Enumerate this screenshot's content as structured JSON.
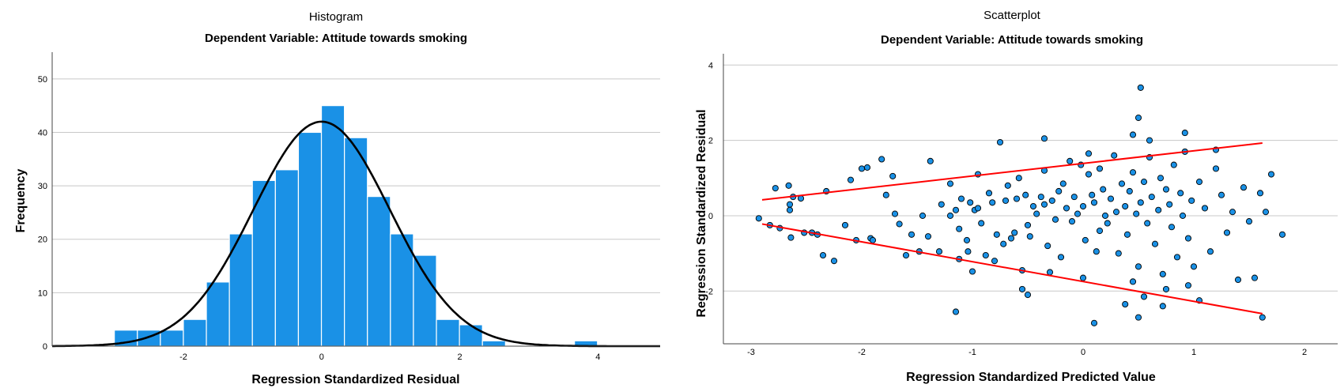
{
  "charts": [
    {
      "type": "bar",
      "subtype": "histogram",
      "title": "Histogram",
      "subtitle": "Dependent Variable: Attitude towards smoking",
      "xlabel": "Regression Standardized Residual",
      "ylabel": "Frequency",
      "xlim": [
        -3.9,
        4.9
      ],
      "ylim": [
        0,
        55
      ],
      "x_ticks": [
        -2,
        0,
        2,
        4
      ],
      "y_ticks": [
        0,
        10,
        20,
        30,
        40,
        50
      ],
      "grid": "horizontal",
      "bar_color": "#1a91e6",
      "curve_color": "#000000",
      "bin_width": 0.333,
      "bin_start": -3.0,
      "values": [
        3,
        3,
        3,
        5,
        12,
        21,
        31,
        33,
        40,
        45,
        39,
        28,
        21,
        17,
        5,
        4,
        1,
        0,
        0,
        0,
        1
      ],
      "normal_curve": {
        "mean": 0.0,
        "std_dev": 0.99,
        "peak": 42
      }
    },
    {
      "type": "scatter",
      "title": "Scatterplot",
      "subtitle": "Dependent Variable: Attitude towards smoking",
      "xlabel": "Regression Standardized Predicted Value",
      "ylabel": "Regression Standardized Residual",
      "xlim": [
        -3.25,
        2.3
      ],
      "ylim": [
        -3.4,
        4.3
      ],
      "x_ticks": [
        -3,
        -2,
        -1,
        0,
        1,
        2
      ],
      "y_ticks": [
        -2,
        0,
        2,
        4
      ],
      "grid": "horizontal",
      "point_color": "#1a91e6",
      "line_color": "#ff0000",
      "lines": [
        {
          "x": [
            -2.9,
            1.62
          ],
          "y": [
            0.42,
            1.93
          ]
        },
        {
          "x": [
            -2.9,
            1.62
          ],
          "y": [
            -0.22,
            -2.6
          ]
        }
      ],
      "points": [
        [
          -2.93,
          -0.07
        ],
        [
          -2.83,
          -0.25
        ],
        [
          -2.78,
          0.73
        ],
        [
          -2.74,
          -0.33
        ],
        [
          -2.66,
          0.8
        ],
        [
          -2.65,
          0.3
        ],
        [
          -2.65,
          0.15
        ],
        [
          -2.64,
          -0.58
        ],
        [
          -2.62,
          0.5
        ],
        [
          -2.55,
          0.46
        ],
        [
          -2.52,
          -0.45
        ],
        [
          -2.45,
          -0.45
        ],
        [
          -2.4,
          -0.5
        ],
        [
          -2.35,
          -1.05
        ],
        [
          -2.32,
          0.65
        ],
        [
          -2.25,
          -1.2
        ],
        [
          -2.15,
          -0.25
        ],
        [
          -2.1,
          0.95
        ],
        [
          -2.05,
          -0.65
        ],
        [
          -2.0,
          1.25
        ],
        [
          -1.95,
          1.28
        ],
        [
          -1.92,
          -0.6
        ],
        [
          -1.9,
          -0.65
        ],
        [
          -1.82,
          1.5
        ],
        [
          -1.78,
          0.55
        ],
        [
          -1.72,
          1.05
        ],
        [
          -1.7,
          0.05
        ],
        [
          -1.66,
          -0.22
        ],
        [
          -1.6,
          -1.05
        ],
        [
          -1.55,
          -0.5
        ],
        [
          -1.48,
          -0.95
        ],
        [
          -1.45,
          0.0
        ],
        [
          -1.4,
          -0.55
        ],
        [
          -1.38,
          1.45
        ],
        [
          -1.3,
          -0.95
        ],
        [
          -1.28,
          0.3
        ],
        [
          -1.2,
          0.85
        ],
        [
          -1.2,
          0.0
        ],
        [
          -1.15,
          0.15
        ],
        [
          -1.12,
          -0.35
        ],
        [
          -1.12,
          -1.15
        ],
        [
          -1.1,
          0.45
        ],
        [
          -1.05,
          -0.65
        ],
        [
          -1.04,
          -0.95
        ],
        [
          -1.02,
          0.35
        ],
        [
          -1.0,
          -1.48
        ],
        [
          -0.98,
          0.15
        ],
        [
          -0.95,
          1.1
        ],
        [
          -0.95,
          0.2
        ],
        [
          -0.92,
          -0.2
        ],
        [
          -0.88,
          -1.05
        ],
        [
          -0.85,
          0.6
        ],
        [
          -0.82,
          0.35
        ],
        [
          -0.8,
          -1.2
        ],
        [
          -0.78,
          -0.5
        ],
        [
          -0.72,
          -0.75
        ],
        [
          -0.7,
          0.4
        ],
        [
          -0.68,
          0.8
        ],
        [
          -0.65,
          -0.6
        ],
        [
          -0.62,
          -0.45
        ],
        [
          -0.6,
          0.45
        ],
        [
          -0.58,
          1.0
        ],
        [
          -0.55,
          -1.45
        ],
        [
          -0.52,
          0.55
        ],
        [
          -0.5,
          -0.25
        ],
        [
          -0.48,
          -0.55
        ],
        [
          -0.45,
          0.25
        ],
        [
          -0.42,
          0.05
        ],
        [
          -0.38,
          0.5
        ],
        [
          -0.35,
          0.3
        ],
        [
          -0.35,
          1.2
        ],
        [
          -0.32,
          -0.8
        ],
        [
          -0.28,
          0.4
        ],
        [
          -0.25,
          -0.1
        ],
        [
          -0.22,
          0.65
        ],
        [
          -0.2,
          -1.1
        ],
        [
          -0.18,
          0.85
        ],
        [
          -0.15,
          0.2
        ],
        [
          -0.12,
          1.45
        ],
        [
          -0.1,
          -0.15
        ],
        [
          -0.08,
          0.5
        ],
        [
          -0.05,
          0.05
        ],
        [
          -0.02,
          1.35
        ],
        [
          0.0,
          0.25
        ],
        [
          0.02,
          -0.65
        ],
        [
          0.05,
          1.1
        ],
        [
          0.08,
          0.55
        ],
        [
          0.1,
          0.35
        ],
        [
          0.12,
          -0.95
        ],
        [
          0.15,
          -0.4
        ],
        [
          0.15,
          1.25
        ],
        [
          0.18,
          0.7
        ],
        [
          0.2,
          0.0
        ],
        [
          0.22,
          -0.2
        ],
        [
          0.25,
          0.45
        ],
        [
          0.28,
          1.6
        ],
        [
          0.3,
          0.1
        ],
        [
          0.32,
          -1.0
        ],
        [
          0.35,
          0.85
        ],
        [
          0.38,
          0.25
        ],
        [
          0.4,
          -0.5
        ],
        [
          0.42,
          0.65
        ],
        [
          0.45,
          1.15
        ],
        [
          0.48,
          0.05
        ],
        [
          0.5,
          -1.35
        ],
        [
          0.52,
          0.35
        ],
        [
          0.55,
          0.9
        ],
        [
          0.58,
          -0.2
        ],
        [
          0.6,
          1.55
        ],
        [
          0.62,
          0.5
        ],
        [
          0.65,
          -0.75
        ],
        [
          0.68,
          0.15
        ],
        [
          0.7,
          1.0
        ],
        [
          0.72,
          -1.55
        ],
        [
          0.75,
          0.7
        ],
        [
          0.78,
          0.3
        ],
        [
          0.8,
          -0.3
        ],
        [
          0.82,
          1.35
        ],
        [
          0.85,
          -1.1
        ],
        [
          0.88,
          0.6
        ],
        [
          0.9,
          0.0
        ],
        [
          0.92,
          1.7
        ],
        [
          0.95,
          -0.6
        ],
        [
          0.98,
          0.4
        ],
        [
          1.0,
          -1.35
        ],
        [
          1.05,
          0.9
        ],
        [
          1.1,
          0.2
        ],
        [
          1.15,
          -0.95
        ],
        [
          1.2,
          1.25
        ],
        [
          1.25,
          0.55
        ],
        [
          1.3,
          -0.45
        ],
        [
          1.35,
          0.1
        ],
        [
          1.4,
          -1.7
        ],
        [
          1.45,
          0.75
        ],
        [
          1.5,
          -0.15
        ],
        [
          1.55,
          -1.65
        ],
        [
          1.6,
          0.6
        ],
        [
          -1.15,
          -2.55
        ],
        [
          -0.5,
          -2.1
        ],
        [
          -0.55,
          -1.95
        ],
        [
          -0.3,
          -1.5
        ],
        [
          0.0,
          -1.65
        ],
        [
          0.1,
          -2.85
        ],
        [
          0.38,
          -2.35
        ],
        [
          0.45,
          -1.75
        ],
        [
          0.5,
          -2.7
        ],
        [
          0.55,
          -2.15
        ],
        [
          0.72,
          -2.4
        ],
        [
          0.75,
          -1.95
        ],
        [
          0.95,
          -1.85
        ],
        [
          1.05,
          -2.25
        ],
        [
          1.62,
          -2.7
        ],
        [
          0.45,
          2.15
        ],
        [
          0.5,
          2.6
        ],
        [
          0.52,
          3.4
        ],
        [
          0.6,
          2.0
        ],
        [
          0.92,
          2.2
        ],
        [
          -0.75,
          1.95
        ],
        [
          -0.35,
          2.05
        ],
        [
          0.05,
          1.65
        ],
        [
          1.2,
          1.75
        ],
        [
          1.7,
          1.1
        ],
        [
          1.8,
          -0.5
        ],
        [
          1.65,
          0.1
        ]
      ]
    }
  ]
}
